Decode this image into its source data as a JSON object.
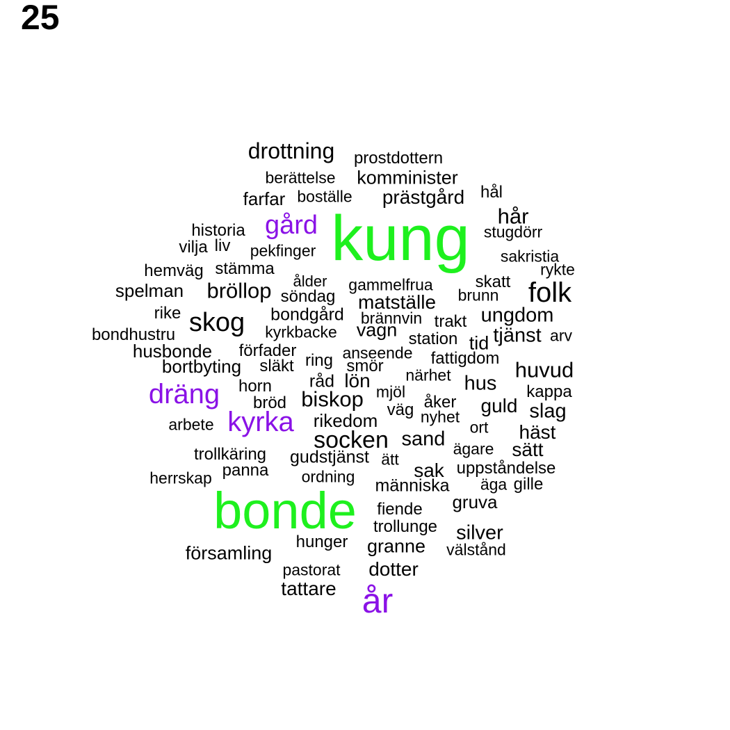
{
  "panel_number": "25",
  "colors": {
    "high": "#1ef01e",
    "mid": "#8a12e6",
    "low": "#000000"
  },
  "words": [
    {
      "text": "kung",
      "tier": "high"
    },
    {
      "text": "bonde",
      "tier": "high"
    },
    {
      "text": "år",
      "tier": "mid"
    },
    {
      "text": "gård",
      "tier": "mid"
    },
    {
      "text": "dräng",
      "tier": "mid"
    },
    {
      "text": "kyrka",
      "tier": "mid"
    },
    {
      "text": "drottning",
      "tier": "low"
    },
    {
      "text": "prostdottern",
      "tier": "low"
    },
    {
      "text": "berättelse",
      "tier": "low"
    },
    {
      "text": "komminister",
      "tier": "low"
    },
    {
      "text": "farfar",
      "tier": "low"
    },
    {
      "text": "boställe",
      "tier": "low"
    },
    {
      "text": "prästgård",
      "tier": "low"
    },
    {
      "text": "hål",
      "tier": "low"
    },
    {
      "text": "hår",
      "tier": "low"
    },
    {
      "text": "historia",
      "tier": "low"
    },
    {
      "text": "stugdörr",
      "tier": "low"
    },
    {
      "text": "vilja",
      "tier": "low"
    },
    {
      "text": "liv",
      "tier": "low"
    },
    {
      "text": "pekfinger",
      "tier": "low"
    },
    {
      "text": "sakristia",
      "tier": "low"
    },
    {
      "text": "hemväg",
      "tier": "low"
    },
    {
      "text": "stämma",
      "tier": "low"
    },
    {
      "text": "rykte",
      "tier": "low"
    },
    {
      "text": "ålder",
      "tier": "low"
    },
    {
      "text": "gammelfrua",
      "tier": "low"
    },
    {
      "text": "skatt",
      "tier": "low"
    },
    {
      "text": "spelman",
      "tier": "low"
    },
    {
      "text": "bröllop",
      "tier": "low"
    },
    {
      "text": "söndag",
      "tier": "low"
    },
    {
      "text": "folk",
      "tier": "low"
    },
    {
      "text": "brunn",
      "tier": "low"
    },
    {
      "text": "matställe",
      "tier": "low"
    },
    {
      "text": "rike",
      "tier": "low"
    },
    {
      "text": "bondgård",
      "tier": "low"
    },
    {
      "text": "ungdom",
      "tier": "low"
    },
    {
      "text": "skog",
      "tier": "low"
    },
    {
      "text": "brännvin",
      "tier": "low"
    },
    {
      "text": "trakt",
      "tier": "low"
    },
    {
      "text": "bondhustru",
      "tier": "low"
    },
    {
      "text": "kyrkbacke",
      "tier": "low"
    },
    {
      "text": "vagn",
      "tier": "low"
    },
    {
      "text": "tjänst",
      "tier": "low"
    },
    {
      "text": "arv",
      "tier": "low"
    },
    {
      "text": "station",
      "tier": "low"
    },
    {
      "text": "tid",
      "tier": "low"
    },
    {
      "text": "husbonde",
      "tier": "low"
    },
    {
      "text": "förfader",
      "tier": "low"
    },
    {
      "text": "anseende",
      "tier": "low"
    },
    {
      "text": "fattigdom",
      "tier": "low"
    },
    {
      "text": "bortbyting",
      "tier": "low"
    },
    {
      "text": "släkt",
      "tier": "low"
    },
    {
      "text": "ring",
      "tier": "low"
    },
    {
      "text": "smör",
      "tier": "low"
    },
    {
      "text": "huvud",
      "tier": "low"
    },
    {
      "text": "närhet",
      "tier": "low"
    },
    {
      "text": "horn",
      "tier": "low"
    },
    {
      "text": "råd",
      "tier": "low"
    },
    {
      "text": "lön",
      "tier": "low"
    },
    {
      "text": "hus",
      "tier": "low"
    },
    {
      "text": "kappa",
      "tier": "low"
    },
    {
      "text": "mjöl",
      "tier": "low"
    },
    {
      "text": "bröd",
      "tier": "low"
    },
    {
      "text": "biskop",
      "tier": "low"
    },
    {
      "text": "åker",
      "tier": "low"
    },
    {
      "text": "guld",
      "tier": "low"
    },
    {
      "text": "slag",
      "tier": "low"
    },
    {
      "text": "väg",
      "tier": "low"
    },
    {
      "text": "nyhet",
      "tier": "low"
    },
    {
      "text": "arbete",
      "tier": "low"
    },
    {
      "text": "rikedom",
      "tier": "low"
    },
    {
      "text": "ort",
      "tier": "low"
    },
    {
      "text": "häst",
      "tier": "low"
    },
    {
      "text": "socken",
      "tier": "low"
    },
    {
      "text": "sand",
      "tier": "low"
    },
    {
      "text": "ägare",
      "tier": "low"
    },
    {
      "text": "sätt",
      "tier": "low"
    },
    {
      "text": "trollkäring",
      "tier": "low"
    },
    {
      "text": "gudstjänst",
      "tier": "low"
    },
    {
      "text": "ätt",
      "tier": "low"
    },
    {
      "text": "panna",
      "tier": "low"
    },
    {
      "text": "sak",
      "tier": "low"
    },
    {
      "text": "uppståndelse",
      "tier": "low"
    },
    {
      "text": "herrskap",
      "tier": "low"
    },
    {
      "text": "ordning",
      "tier": "low"
    },
    {
      "text": "människa",
      "tier": "low"
    },
    {
      "text": "äga",
      "tier": "low"
    },
    {
      "text": "gille",
      "tier": "low"
    },
    {
      "text": "gruva",
      "tier": "low"
    },
    {
      "text": "fiende",
      "tier": "low"
    },
    {
      "text": "trollunge",
      "tier": "low"
    },
    {
      "text": "silver",
      "tier": "low"
    },
    {
      "text": "hunger",
      "tier": "low"
    },
    {
      "text": "granne",
      "tier": "low"
    },
    {
      "text": "välstånd",
      "tier": "low"
    },
    {
      "text": "församling",
      "tier": "low"
    },
    {
      "text": "pastorat",
      "tier": "low"
    },
    {
      "text": "dotter",
      "tier": "low"
    },
    {
      "text": "tattare",
      "tier": "low"
    }
  ]
}
